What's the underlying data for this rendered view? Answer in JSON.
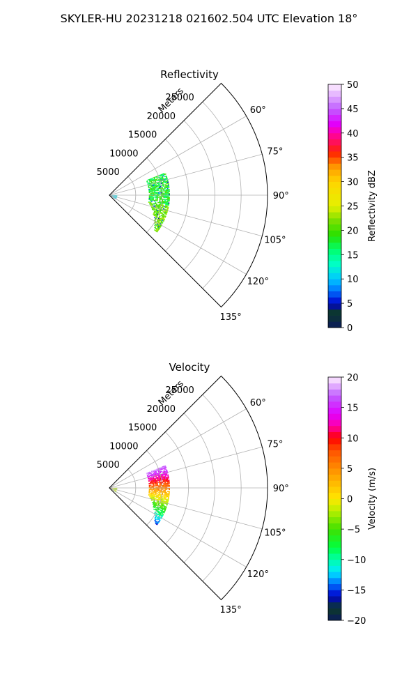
{
  "suptitle": "SKYLER-HU  20231218  021602.504 UTC Elevation 18°",
  "chart_data": [
    {
      "type": "heatmap",
      "projection": "polar-sector",
      "title": "Reflectivity",
      "range_label": "Meters",
      "range_ticks": [
        5000,
        10000,
        15000,
        20000,
        25000
      ],
      "range_max": 30000,
      "azimuth_ticks": [
        "60°",
        "75°",
        "90°",
        "105°",
        "120°",
        "135°"
      ],
      "azimuth_tick_values": [
        60,
        75,
        90,
        105,
        120,
        135
      ],
      "azimuth_range": [
        45,
        135
      ],
      "grid": true,
      "colorbar": {
        "label": "Reflectivity dBZ",
        "min": 0,
        "max": 50,
        "ticks": [
          0,
          5,
          10,
          15,
          20,
          25,
          30,
          35,
          40,
          45,
          50
        ],
        "stops": [
          [
            0,
            "#0b1a5c"
          ],
          [
            3,
            "#0c3a28"
          ],
          [
            5,
            "#0000cc"
          ],
          [
            7.5,
            "#0070ff"
          ],
          [
            10,
            "#00c8ff"
          ],
          [
            13,
            "#00ffc8"
          ],
          [
            16,
            "#00ff6e"
          ],
          [
            19,
            "#28e000"
          ],
          [
            22,
            "#7ae000"
          ],
          [
            25,
            "#e6f000"
          ],
          [
            30,
            "#ffd400"
          ],
          [
            33,
            "#ff9a00"
          ],
          [
            36,
            "#ff2200"
          ],
          [
            40,
            "#ff00aa"
          ],
          [
            42,
            "#e000ff"
          ],
          [
            45,
            "#c060ff"
          ],
          [
            50,
            "#fff0ff"
          ]
        ]
      }
    },
    {
      "type": "heatmap",
      "projection": "polar-sector",
      "title": "Velocity",
      "range_label": "Meters",
      "range_ticks": [
        5000,
        10000,
        15000,
        20000,
        25000
      ],
      "range_max": 30000,
      "azimuth_ticks": [
        "60°",
        "75°",
        "90°",
        "105°",
        "120°",
        "135°"
      ],
      "azimuth_tick_values": [
        60,
        75,
        90,
        105,
        120,
        135
      ],
      "azimuth_range": [
        45,
        135
      ],
      "grid": true,
      "colorbar": {
        "label": "Velocity (m/s)",
        "min": -20,
        "max": 20,
        "ticks": [
          -20,
          -15,
          -10,
          -5,
          0,
          5,
          10,
          15,
          20
        ],
        "stops": [
          [
            -20,
            "#0b1a5c"
          ],
          [
            -18,
            "#0c3a28"
          ],
          [
            -16,
            "#0000cc"
          ],
          [
            -14,
            "#0070ff"
          ],
          [
            -12,
            "#00e8ff"
          ],
          [
            -10,
            "#00ffaa"
          ],
          [
            -8,
            "#00ff40"
          ],
          [
            -5,
            "#40e000"
          ],
          [
            -2,
            "#b8f000"
          ],
          [
            0,
            "#ffe800"
          ],
          [
            4,
            "#ffa000"
          ],
          [
            8,
            "#ff5000"
          ],
          [
            10,
            "#ff0000"
          ],
          [
            12,
            "#ff00aa"
          ],
          [
            14,
            "#e000ff"
          ],
          [
            17,
            "#c060ff"
          ],
          [
            20,
            "#fff0ff"
          ]
        ]
      }
    }
  ]
}
